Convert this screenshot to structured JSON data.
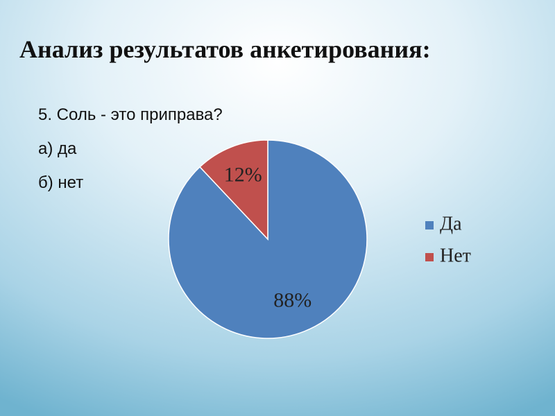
{
  "slide": {
    "title": "Анализ результатов анкетирования:",
    "lines": [
      "5. Соль - это приправа?",
      "а) да",
      "б) нет"
    ]
  },
  "chart_data": {
    "type": "pie",
    "categories": [
      "Да",
      "Нет"
    ],
    "values": [
      88,
      12
    ],
    "value_labels": [
      "88%",
      "12%"
    ],
    "colors": [
      "#4f81bd",
      "#c0504d"
    ],
    "legend": "right"
  }
}
